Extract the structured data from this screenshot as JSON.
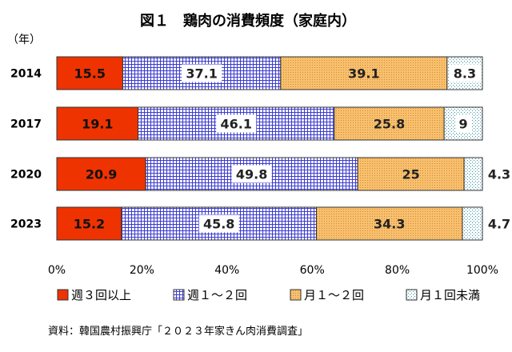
{
  "chart_data": {
    "type": "bar",
    "orientation": "horizontal",
    "stacked": true,
    "title": "図１　鶏肉の消費頻度（家庭内）",
    "year_axis_label": "（年）",
    "categories": [
      "2014",
      "2017",
      "2020",
      "2023"
    ],
    "series": [
      {
        "name": "週３回以上",
        "values": [
          15.5,
          19.1,
          20.9,
          15.2
        ],
        "color": "#ee3300"
      },
      {
        "name": "週１～２回",
        "values": [
          37.1,
          46.1,
          49.8,
          45.8
        ],
        "color": "#3333cc"
      },
      {
        "name": "月１～２回",
        "values": [
          39.1,
          25.8,
          25,
          34.3
        ],
        "color": "#f5b041"
      },
      {
        "name": "月１回未満",
        "values": [
          8.3,
          9,
          4.3,
          4.7
        ],
        "color": "#5fa8b8"
      }
    ],
    "data_labels": [
      [
        "15.5",
        "37.1",
        "39.1",
        "8.3"
      ],
      [
        "19.1",
        "46.1",
        "25.8",
        "9"
      ],
      [
        "20.9",
        "49.8",
        "25",
        "4.3"
      ],
      [
        "15.2",
        "45.8",
        "34.3",
        "4.7"
      ]
    ],
    "xlim": [
      0,
      100
    ],
    "x_ticks": [
      "0%",
      "20%",
      "40%",
      "60%",
      "80%",
      "100%"
    ],
    "legend_position": "bottom",
    "grid": false,
    "source": "資料：韓国農村振興庁「２０２３年家きん肉消費調査」"
  }
}
